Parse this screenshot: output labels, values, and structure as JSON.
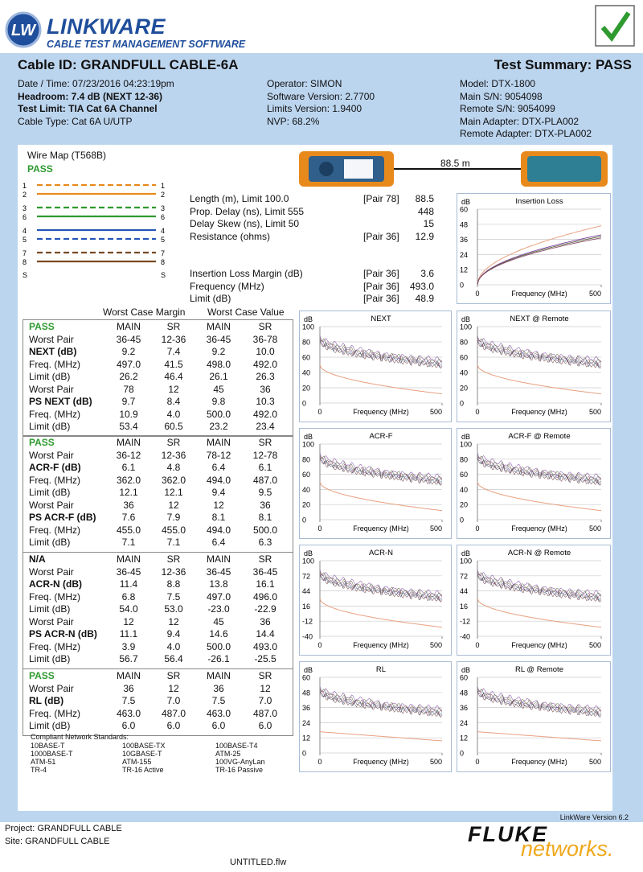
{
  "header": {
    "logo": "LW",
    "brand": "LINKWARE",
    "tagline": "CABLE TEST MANAGEMENT SOFTWARE"
  },
  "summary": {
    "cable_id": "Cable ID: GRANDFULL CABLE-6A",
    "result": "Test Summary: PASS",
    "columns": [
      [
        "Date / Time: 07/23/2016 04:23:19pm",
        "Headroom: 7.4 dB (NEXT 12-36)",
        "Test Limit: TIA Cat 6A Channel",
        "Cable Type: Cat 6A U/UTP"
      ],
      [
        "Operator: SIMON",
        "Software Version: 2.7700",
        "Limits Version: 1.9400",
        "NVP: 68.2%"
      ],
      [
        "Model: DTX-1800",
        "Main S/N: 9054098",
        "Remote S/N: 9054099",
        "Main Adapter: DTX-PLA002",
        "Remote Adapter: DTX-PLA002"
      ]
    ]
  },
  "wiremap": {
    "title": "Wire Map (T568B)",
    "result": "PASS",
    "pins": [
      "1",
      "2",
      "3",
      "6",
      "4",
      "5",
      "7",
      "8",
      "S"
    ],
    "length": "88.5 m"
  },
  "measurements": [
    [
      {
        "label": "Length (m), Limit 100.0",
        "pair": "[Pair 78]",
        "value": "88.5"
      },
      {
        "label": "Prop. Delay (ns), Limit 555",
        "value": "448"
      },
      {
        "label": "Delay Skew (ns), Limit 50",
        "value": "15"
      },
      {
        "label": "Resistance (ohms)",
        "pair": "[Pair 36]",
        "value": "12.9"
      }
    ],
    [
      {
        "label": "Insertion Loss Margin (dB)",
        "pair": "[Pair 36]",
        "value": "3.6"
      },
      {
        "label": "Frequency (MHz)",
        "pair": "[Pair 36]",
        "value": "493.0"
      },
      {
        "label": "Limit (dB)",
        "pair": "[Pair 36]",
        "value": "48.9"
      }
    ]
  ],
  "results": {
    "headers": [
      "Worst Case Margin",
      "Worst Case Value"
    ],
    "sections": [
      {
        "header": [
          "PASS",
          "MAIN",
          "SR",
          "MAIN",
          "SR"
        ],
        "rows": [
          [
            "Worst Pair",
            "36-45",
            "12-36",
            "36-45",
            "36-78"
          ],
          [
            "NEXT (dB)",
            "9.2",
            "7.4",
            "9.2",
            "10.0"
          ],
          [
            "Freq. (MHz)",
            "497.0",
            "41.5",
            "498.0",
            "492.0"
          ],
          [
            "Limit (dB)",
            "26.2",
            "46.4",
            "26.1",
            "26.3"
          ],
          [
            "Worst Pair",
            "78",
            "12",
            "45",
            "36"
          ],
          [
            "PS NEXT (dB)",
            "9.7",
            "8.4",
            "9.8",
            "10.3"
          ],
          [
            "Freq. (MHz)",
            "10.9",
            "4.0",
            "500.0",
            "492.0"
          ],
          [
            "Limit (dB)",
            "53.4",
            "60.5",
            "23.2",
            "23.4"
          ]
        ]
      },
      {
        "header": [
          "PASS",
          "MAIN",
          "SR",
          "MAIN",
          "SR"
        ],
        "rows": [
          [
            "Worst Pair",
            "36-12",
            "12-36",
            "78-12",
            "12-78"
          ],
          [
            "ACR-F (dB)",
            "6.1",
            "4.8",
            "6.4",
            "6.1"
          ],
          [
            "Freq. (MHz)",
            "362.0",
            "362.0",
            "494.0",
            "487.0"
          ],
          [
            "Limit (dB)",
            "12.1",
            "12.1",
            "9.4",
            "9.5"
          ],
          [
            "Worst Pair",
            "36",
            "12",
            "12",
            "36"
          ],
          [
            "PS ACR-F (dB)",
            "7.6",
            "7.9",
            "8.1",
            "8.1"
          ],
          [
            "Freq. (MHz)",
            "455.0",
            "455.0",
            "494.0",
            "500.0"
          ],
          [
            "Limit (dB)",
            "7.1",
            "7.1",
            "6.4",
            "6.3"
          ]
        ]
      },
      {
        "header": [
          "N/A",
          "MAIN",
          "SR",
          "MAIN",
          "SR"
        ],
        "rows": [
          [
            "Worst Pair",
            "36-45",
            "12-36",
            "36-45",
            "36-45"
          ],
          [
            "ACR-N (dB)",
            "11.4",
            "8.8",
            "13.8",
            "16.1"
          ],
          [
            "Freq. (MHz)",
            "6.8",
            "7.5",
            "497.0",
            "496.0"
          ],
          [
            "Limit (dB)",
            "54.0",
            "53.0",
            "-23.0",
            "-22.9"
          ],
          [
            "Worst Pair",
            "12",
            "12",
            "45",
            "36"
          ],
          [
            "PS ACR-N (dB)",
            "11.1",
            "9.4",
            "14.6",
            "14.4"
          ],
          [
            "Freq. (MHz)",
            "3.9",
            "4.0",
            "500.0",
            "493.0"
          ],
          [
            "Limit (dB)",
            "56.7",
            "56.4",
            "-26.1",
            "-25.5"
          ]
        ]
      },
      {
        "header": [
          "PASS",
          "MAIN",
          "SR",
          "MAIN",
          "SR"
        ],
        "rows": [
          [
            "Worst Pair",
            "36",
            "12",
            "36",
            "12"
          ],
          [
            "RL (dB)",
            "7.5",
            "7.0",
            "7.5",
            "7.0"
          ],
          [
            "Freq. (MHz)",
            "463.0",
            "487.0",
            "463.0",
            "487.0"
          ],
          [
            "Limit (dB)",
            "6.0",
            "6.0",
            "6.0",
            "6.0"
          ]
        ]
      }
    ]
  },
  "standards": {
    "title": "Compliant Network Standards:",
    "rows": [
      [
        "10BASE-T",
        "100BASE-TX",
        "100BASE-T4"
      ],
      [
        "1000BASE-T",
        "10GBASE-T",
        "ATM-25"
      ],
      [
        "ATM-51",
        "ATM-155",
        "100VG-AnyLan"
      ],
      [
        "TR-4",
        "TR-16 Active",
        "TR-16 Passive"
      ]
    ]
  },
  "charts": [
    {
      "title": "Insertion Loss",
      "y_label": "dB",
      "x_label": "Frequency (MHz)",
      "yticks": [
        60,
        48,
        36,
        24,
        12,
        0
      ],
      "xticks": [
        0,
        500
      ]
    },
    {
      "title": "NEXT",
      "y_label": "dB",
      "x_label": "Frequency (MHz)",
      "yticks": [
        100,
        80,
        60,
        40,
        20,
        0
      ],
      "xticks": [
        0,
        500
      ]
    },
    {
      "title": "NEXT @ Remote",
      "y_label": "dB",
      "x_label": "Frequency (MHz)",
      "yticks": [
        100,
        80,
        60,
        40,
        20,
        0
      ],
      "xticks": [
        0,
        500
      ]
    },
    {
      "title": "ACR-F",
      "y_label": "dB",
      "x_label": "Frequency (MHz)",
      "yticks": [
        100,
        80,
        60,
        40,
        20,
        0
      ],
      "xticks": [
        0,
        500
      ]
    },
    {
      "title": "ACR-F @ Remote",
      "y_label": "dB",
      "x_label": "Frequency (MHz)",
      "yticks": [
        100,
        80,
        60,
        40,
        20,
        0
      ],
      "xticks": [
        0,
        500
      ]
    },
    {
      "title": "ACR-N",
      "y_label": "dB",
      "x_label": "Frequency (MHz)",
      "yticks": [
        100,
        72,
        44,
        16,
        -12,
        -40
      ],
      "xticks": [
        0,
        500
      ]
    },
    {
      "title": "ACR-N @ Remote",
      "y_label": "dB",
      "x_label": "Frequency (MHz)",
      "yticks": [
        100,
        72,
        44,
        16,
        -12,
        -40
      ],
      "xticks": [
        0,
        500
      ]
    },
    {
      "title": "RL",
      "y_label": "dB",
      "x_label": "Frequency (MHz)",
      "yticks": [
        60,
        48,
        36,
        24,
        12,
        0
      ],
      "xticks": [
        0,
        500
      ]
    },
    {
      "title": "RL @ Remote",
      "y_label": "dB",
      "x_label": "Frequency (MHz)",
      "yticks": [
        60,
        48,
        36,
        24,
        12,
        0
      ],
      "xticks": [
        0,
        500
      ]
    }
  ],
  "footer": {
    "version": "LinkWare Version  6.2",
    "project": "Project: GRANDFULL CABLE",
    "site": "Site: GRANDFULL CABLE",
    "brand": "FLUKE",
    "brand_sub": "networks.",
    "file": "UNTITLED.flw"
  }
}
